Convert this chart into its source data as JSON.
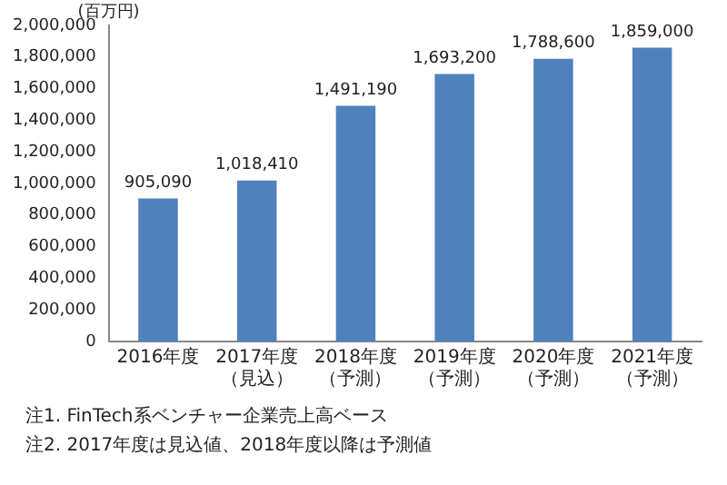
{
  "chart_data": {
    "type": "bar",
    "ylabel": "(百万円)",
    "categories": [
      "2016年度",
      "2017年度（見込）",
      "2018年度（予測）",
      "2019年度（予測）",
      "2020年度（予測）",
      "2021年度（予測）"
    ],
    "values": [
      905090,
      1018410,
      1491190,
      1693200,
      1788600,
      1859000
    ],
    "value_labels": [
      "905,090",
      "1,018,410",
      "1,491,190",
      "1,693,200",
      "1,788,600",
      "1,859,000"
    ],
    "color": "#4f81bd",
    "ylim": [
      0,
      2000000
    ],
    "yticks": [
      0,
      {
        "value": 200000,
        "label": "200,000"
      },
      {
        "value": 400000,
        "label": "400,000"
      },
      {
        "value": 600000,
        "label": "600,000"
      },
      {
        "value": 800000,
        "label": "800,000"
      },
      {
        "value": 1000000,
        "label": "1,000,000"
      },
      {
        "value": 1200000,
        "label": "1,200,000"
      },
      {
        "value": 1400000,
        "label": "1,400,000"
      },
      {
        "value": 1600000,
        "label": "1,600,000"
      },
      {
        "value": 1800000,
        "label": "1,800,000"
      },
      {
        "value": 2000000,
        "label": "2,000,000"
      }
    ],
    "grid": false,
    "legend": false,
    "annotations": [
      "注1. FinTech系ベンチャー企業売上高ベース",
      "注2. 2017年度は見込値、2018年度以降は予測値"
    ]
  }
}
